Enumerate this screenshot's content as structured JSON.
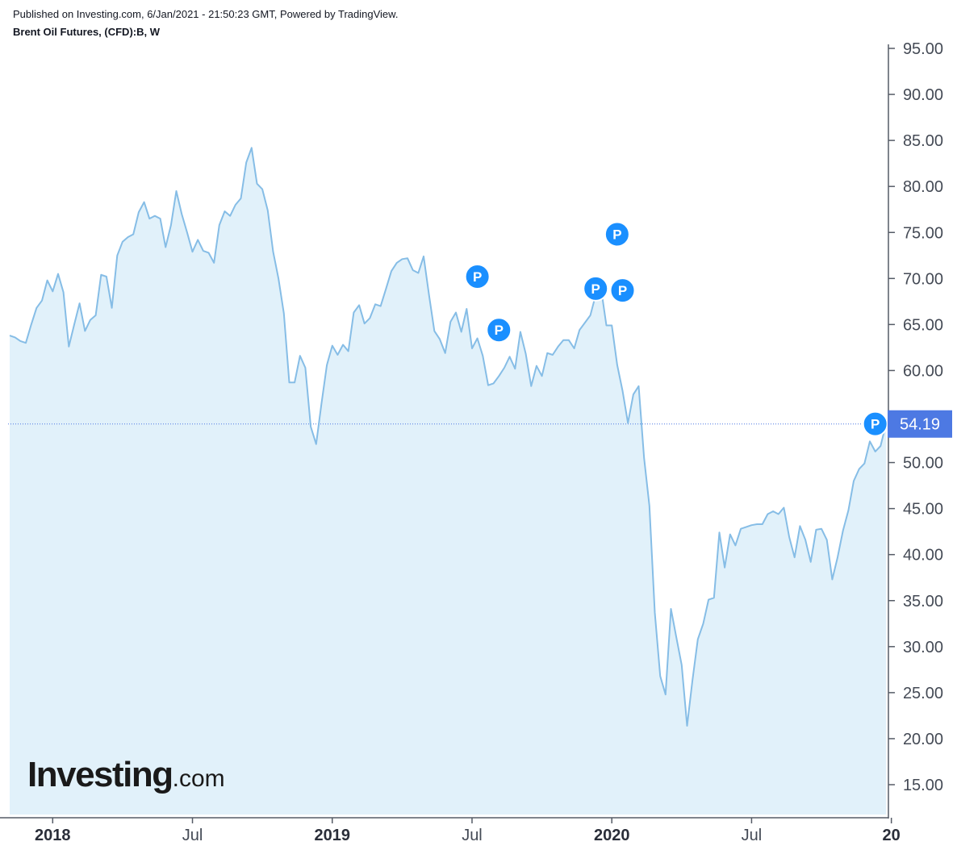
{
  "header": {
    "published": "Published on Investing.com, 6/Jan/2021 - 21:50:23 GMT, Powered by TradingView.",
    "symbol": "Brent Oil Futures, (CFD):B, W"
  },
  "logo": {
    "main": "Investing",
    "suffix": ".com"
  },
  "colors": {
    "line": "#86bde6",
    "fill": "#e1f1fa",
    "axis": "#555b66",
    "marker": "#1a8fff",
    "price_tag": "#4d79e3"
  },
  "chart_data": {
    "type": "area",
    "title": "Brent Oil Futures, (CFD):B, W",
    "ylim": [
      12,
      96
    ],
    "y_ticks": [
      "95.00",
      "90.00",
      "85.00",
      "80.00",
      "75.00",
      "70.00",
      "65.00",
      "60.00",
      "55.00",
      "50.00",
      "45.00",
      "40.00",
      "35.00",
      "30.00",
      "25.00",
      "20.00",
      "15.00"
    ],
    "x_ticks": [
      {
        "label": "2018",
        "i": 8,
        "bold": true
      },
      {
        "label": "Jul",
        "i": 34,
        "bold": false
      },
      {
        "label": "2019",
        "i": 60,
        "bold": true
      },
      {
        "label": "Jul",
        "i": 86,
        "bold": false
      },
      {
        "label": "2020",
        "i": 112,
        "bold": true
      },
      {
        "label": "Jul",
        "i": 138,
        "bold": false
      },
      {
        "label": "20",
        "i": 164,
        "bold": true
      }
    ],
    "current_price": 54.19,
    "current_price_label": "54.19",
    "values": [
      63.8,
      63.6,
      63.2,
      63.0,
      65.0,
      66.8,
      67.6,
      69.8,
      68.6,
      70.5,
      68.5,
      62.6,
      65.0,
      67.3,
      64.3,
      65.5,
      66.0,
      70.4,
      70.2,
      66.8,
      72.5,
      74.0,
      74.5,
      74.8,
      77.2,
      78.3,
      76.5,
      76.8,
      76.5,
      73.4,
      75.8,
      79.5,
      77.0,
      75.0,
      72.9,
      74.2,
      73.0,
      72.8,
      71.7,
      75.8,
      77.3,
      76.8,
      78.0,
      78.7,
      82.6,
      84.2,
      80.3,
      79.7,
      77.4,
      72.9,
      70.0,
      66.2,
      58.7,
      58.7,
      61.6,
      60.3,
      53.9,
      52.0,
      56.4,
      60.6,
      62.7,
      61.7,
      62.8,
      62.1,
      66.3,
      67.1,
      65.1,
      65.7,
      67.2,
      67.0,
      68.9,
      70.8,
      71.7,
      72.1,
      72.2,
      70.9,
      70.6,
      72.4,
      68.2,
      64.3,
      63.4,
      61.9,
      65.3,
      66.3,
      64.2,
      66.7,
      62.4,
      63.5,
      61.6,
      58.4,
      58.6,
      59.4,
      60.3,
      61.5,
      60.2,
      64.2,
      61.8,
      58.3,
      60.5,
      59.4,
      61.9,
      61.7,
      62.6,
      63.3,
      63.3,
      62.4,
      64.4,
      65.2,
      66.0,
      68.2,
      68.9,
      64.9,
      64.9,
      60.6,
      57.8,
      54.3,
      57.4,
      58.3,
      50.5,
      45.3,
      33.7,
      26.8,
      24.8,
      34.1,
      31.0,
      28.0,
      21.4,
      26.3,
      30.8,
      32.5,
      35.1,
      35.3,
      42.4,
      38.6,
      42.2,
      41.0,
      42.8,
      43.0,
      43.2,
      43.3,
      43.3,
      44.4,
      44.7,
      44.4,
      45.1,
      41.9,
      39.7,
      43.1,
      41.6,
      39.2,
      42.7,
      42.8,
      41.6,
      37.3,
      39.7,
      42.6,
      44.8,
      48.0,
      49.3,
      49.9,
      52.3,
      51.2,
      51.8,
      54.2
    ],
    "annotations": [
      {
        "label": "P",
        "i": 87,
        "value": 70.2
      },
      {
        "label": "P",
        "i": 91,
        "value": 64.4
      },
      {
        "label": "P",
        "i": 109,
        "value": 68.9
      },
      {
        "label": "P",
        "i": 113,
        "value": 74.8
      },
      {
        "label": "P",
        "i": 114,
        "value": 68.7
      },
      {
        "label": "P",
        "i": 161,
        "value": 54.2
      }
    ]
  }
}
